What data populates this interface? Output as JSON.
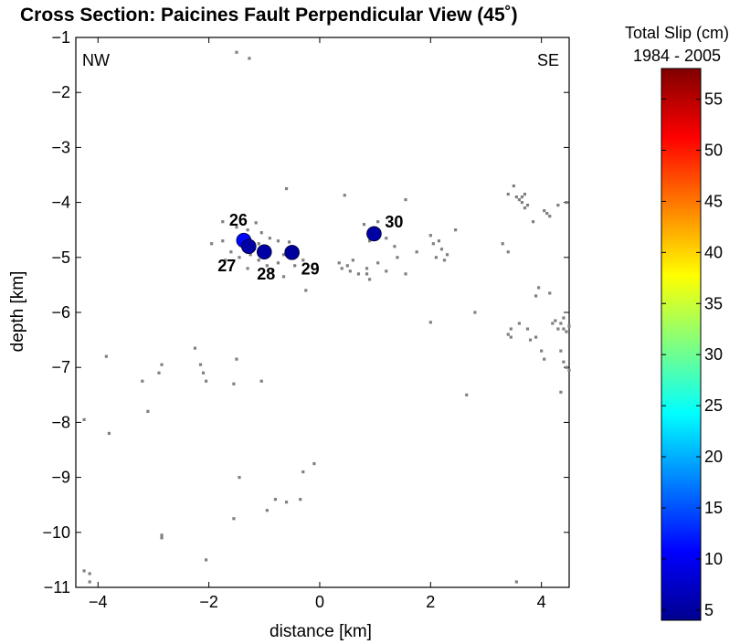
{
  "chart_data": {
    "type": "scatter",
    "title": "Cross Section: Paicines Fault Perpendicular View (45˚)",
    "xlabel": "distance [km]",
    "ylabel": "depth [km]",
    "xlim": [
      -4.4,
      4.5
    ],
    "ylim": [
      -11,
      -1
    ],
    "xticks": [
      -4,
      -2,
      0,
      2,
      4
    ],
    "xtick_labels": [
      "−4",
      "−2",
      "0",
      "2",
      "4"
    ],
    "yticks": [
      -1,
      -2,
      -3,
      -4,
      -5,
      -6,
      -7,
      -8,
      -9,
      -10,
      -11
    ],
    "ytick_labels": [
      "−1",
      "−2",
      "−3",
      "−4",
      "−5",
      "−6",
      "−7",
      "−8",
      "−9",
      "−10",
      "−11"
    ],
    "grid": false,
    "corner_labels": {
      "left": "NW",
      "right": "SE"
    },
    "series": [
      {
        "marker": "small gray dot",
        "color": "#808080",
        "points": [
          [
            -1.5,
            -1.27
          ],
          [
            -1.27,
            -1.38
          ],
          [
            -0.6,
            -3.75
          ],
          [
            -1.75,
            -4.35
          ],
          [
            -1.5,
            -4.45
          ],
          [
            -1.3,
            -4.5
          ],
          [
            -1.15,
            -4.37
          ],
          [
            -1.05,
            -4.55
          ],
          [
            -0.9,
            -4.65
          ],
          [
            -0.75,
            -4.7
          ],
          [
            -0.55,
            -4.72
          ],
          [
            -1.95,
            -4.75
          ],
          [
            -1.75,
            -4.7
          ],
          [
            -1.7,
            -5.05
          ],
          [
            -1.6,
            -4.9
          ],
          [
            -1.45,
            -5.0
          ],
          [
            -1.3,
            -5.2
          ],
          [
            -1.25,
            -4.95
          ],
          [
            -1.1,
            -5.05
          ],
          [
            -0.95,
            -5.15
          ],
          [
            -0.75,
            -5.1
          ],
          [
            -0.85,
            -5.25
          ],
          [
            -0.65,
            -5.35
          ],
          [
            -0.45,
            -5.15
          ],
          [
            -0.3,
            -5.05
          ],
          [
            -0.25,
            -5.6
          ],
          [
            -0.65,
            -4.95
          ],
          [
            -1.1,
            -4.75
          ],
          [
            0.45,
            -3.87
          ],
          [
            0.8,
            -4.4
          ],
          [
            0.9,
            -4.7
          ],
          [
            1.05,
            -4.35
          ],
          [
            1.2,
            -4.65
          ],
          [
            1.35,
            -4.8
          ],
          [
            1.55,
            -3.95
          ],
          [
            0.35,
            -5.1
          ],
          [
            0.4,
            -5.2
          ],
          [
            0.5,
            -5.15
          ],
          [
            0.55,
            -5.25
          ],
          [
            0.6,
            -5.05
          ],
          [
            0.7,
            -5.3
          ],
          [
            0.85,
            -5.2
          ],
          [
            0.85,
            -5.3
          ],
          [
            0.9,
            -5.4
          ],
          [
            1.05,
            -5.1
          ],
          [
            1.2,
            -5.25
          ],
          [
            1.4,
            -5.0
          ],
          [
            1.55,
            -5.3
          ],
          [
            1.75,
            -4.9
          ],
          [
            2.0,
            -4.6
          ],
          [
            2.05,
            -4.75
          ],
          [
            2.15,
            -4.7
          ],
          [
            2.1,
            -5.0
          ],
          [
            2.2,
            -4.85
          ],
          [
            2.25,
            -5.05
          ],
          [
            2.3,
            -4.95
          ],
          [
            2.45,
            -4.5
          ],
          [
            2.0,
            -6.18
          ],
          [
            2.8,
            -6.0
          ],
          [
            2.65,
            -7.5
          ],
          [
            3.4,
            -3.85
          ],
          [
            3.5,
            -3.7
          ],
          [
            3.55,
            -3.9
          ],
          [
            3.6,
            -3.95
          ],
          [
            3.65,
            -4.0
          ],
          [
            3.7,
            -3.85
          ],
          [
            3.75,
            -4.05
          ],
          [
            3.7,
            -4.1
          ],
          [
            3.65,
            -3.9
          ],
          [
            3.85,
            -4.35
          ],
          [
            4.05,
            -4.15
          ],
          [
            4.1,
            -4.2
          ],
          [
            4.15,
            -4.25
          ],
          [
            4.3,
            -4.05
          ],
          [
            4.45,
            -4.0
          ],
          [
            3.3,
            -4.75
          ],
          [
            3.4,
            -4.9
          ],
          [
            3.45,
            -6.3
          ],
          [
            3.4,
            -6.4
          ],
          [
            3.45,
            -6.45
          ],
          [
            3.6,
            -6.2
          ],
          [
            3.75,
            -6.3
          ],
          [
            3.8,
            -6.5
          ],
          [
            3.9,
            -6.45
          ],
          [
            3.9,
            -5.7
          ],
          [
            3.95,
            -5.55
          ],
          [
            4.15,
            -5.65
          ],
          [
            4.2,
            -6.2
          ],
          [
            4.25,
            -6.15
          ],
          [
            4.3,
            -6.3
          ],
          [
            4.35,
            -6.2
          ],
          [
            4.4,
            -6.3
          ],
          [
            4.45,
            -6.35
          ],
          [
            4.4,
            -6.1
          ],
          [
            4.5,
            -6.25
          ],
          [
            4.0,
            -6.7
          ],
          [
            4.05,
            -6.85
          ],
          [
            4.35,
            -6.7
          ],
          [
            4.4,
            -6.9
          ],
          [
            4.45,
            -7.0
          ],
          [
            4.5,
            -7.05
          ],
          [
            4.35,
            -7.45
          ],
          [
            3.55,
            -10.9
          ],
          [
            -4.25,
            -7.95
          ],
          [
            -3.85,
            -6.8
          ],
          [
            -3.8,
            -8.2
          ],
          [
            -3.2,
            -7.25
          ],
          [
            -3.1,
            -7.8
          ],
          [
            -2.9,
            -7.1
          ],
          [
            -2.85,
            -6.95
          ],
          [
            -2.85,
            -10.05
          ],
          [
            -2.85,
            -10.1
          ],
          [
            -2.25,
            -6.65
          ],
          [
            -2.15,
            -6.95
          ],
          [
            -2.1,
            -7.1
          ],
          [
            -2.05,
            -7.25
          ],
          [
            -1.55,
            -7.3
          ],
          [
            -1.5,
            -6.85
          ],
          [
            -1.05,
            -7.25
          ],
          [
            -1.45,
            -9.0
          ],
          [
            -1.55,
            -9.75
          ],
          [
            -0.95,
            -9.6
          ],
          [
            -0.8,
            -9.4
          ],
          [
            -0.6,
            -9.45
          ],
          [
            -0.35,
            -9.4
          ],
          [
            -0.3,
            -8.9
          ],
          [
            -0.1,
            -8.75
          ],
          [
            -2.05,
            -10.5
          ],
          [
            -4.25,
            -10.7
          ],
          [
            -4.15,
            -10.75
          ],
          [
            -4.15,
            -10.9
          ]
        ]
      },
      {
        "marker": "large circle, colored by total slip",
        "points": [
          {
            "label": "26",
            "x": -1.37,
            "y": -4.69,
            "slip": 11
          },
          {
            "label": "27",
            "x": -1.28,
            "y": -4.8,
            "slip": 6
          },
          {
            "label": "28",
            "x": -1.0,
            "y": -4.9,
            "slip": 6
          },
          {
            "label": "29",
            "x": -0.5,
            "y": -4.91,
            "slip": 5.5
          },
          {
            "label": "30",
            "x": 0.98,
            "y": -4.57,
            "slip": 6
          }
        ]
      }
    ],
    "colorbar": {
      "title": "Total Slip (cm)",
      "subtitle": "1984 - 2005",
      "range": [
        4,
        58
      ],
      "ticks": [
        5,
        10,
        15,
        20,
        25,
        30,
        35,
        40,
        45,
        50,
        55
      ],
      "colormap": "jet"
    }
  }
}
